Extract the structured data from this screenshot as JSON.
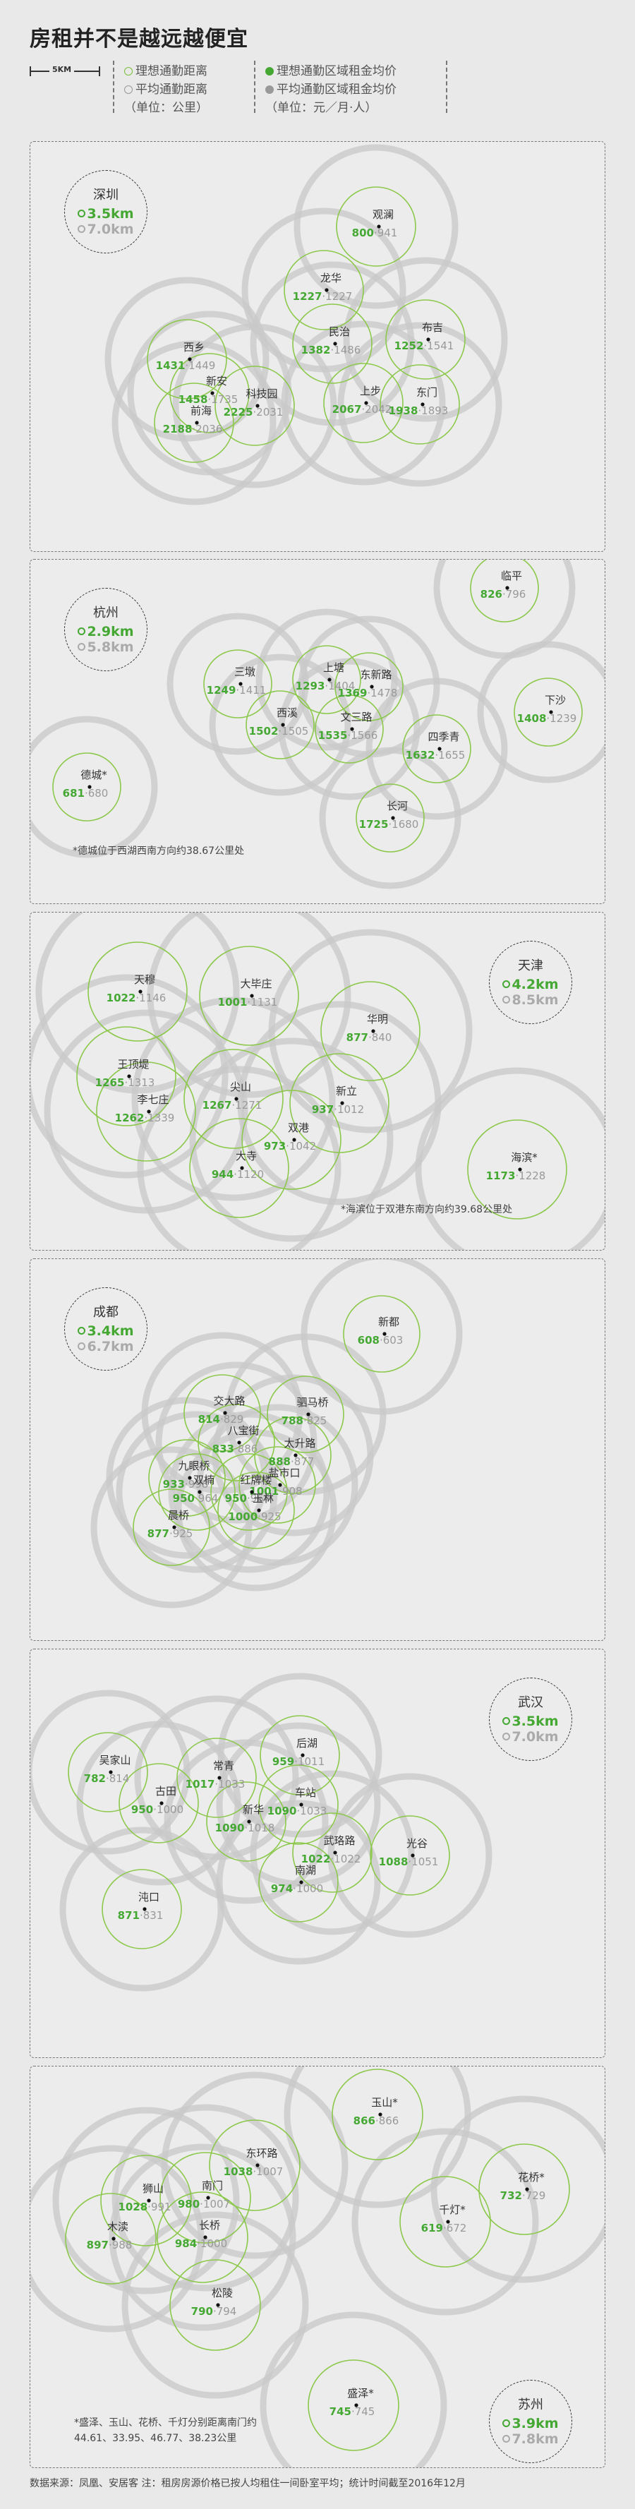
{
  "title": "房租并不是越远越便宜",
  "legend": {
    "scale_label": "5KM",
    "ideal_distance": "理想通勤距离",
    "avg_distance": "平均通勤距离",
    "distance_unit": "（单位：公里）",
    "ideal_rent": "理想通勤区域租金均价",
    "avg_rent": "平均通勤区域租金均价",
    "rent_unit": "（单位：元／月·人）"
  },
  "colors": {
    "green": "#44a833",
    "light_green": "#8cc84b",
    "gray": "#999999",
    "ring_gray": "#c8c8c8"
  },
  "chart_data": [
    {
      "type": "scatter",
      "city": "深圳",
      "ideal_km": "3.5km",
      "avg_km": "7.0km",
      "districts": [
        {
          "name": "观澜",
          "ideal_rent": 800,
          "avg_rent": 941
        },
        {
          "name": "龙华",
          "ideal_rent": 1227,
          "avg_rent": 1227
        },
        {
          "name": "民治",
          "ideal_rent": 1382,
          "avg_rent": 1486
        },
        {
          "name": "布吉",
          "ideal_rent": 1252,
          "avg_rent": 1541
        },
        {
          "name": "西乡",
          "ideal_rent": 1431,
          "avg_rent": 1449
        },
        {
          "name": "新安",
          "ideal_rent": 1458,
          "avg_rent": 1735
        },
        {
          "name": "前海",
          "ideal_rent": 2188,
          "avg_rent": 2036
        },
        {
          "name": "科技园",
          "ideal_rent": 2225,
          "avg_rent": 2031
        },
        {
          "name": "上步",
          "ideal_rent": 2067,
          "avg_rent": 2042
        },
        {
          "name": "东门",
          "ideal_rent": 1938,
          "avg_rent": 1893
        }
      ]
    },
    {
      "type": "scatter",
      "city": "杭州",
      "ideal_km": "2.9km",
      "avg_km": "5.8km",
      "note": "*德城位于西湖西南方向约38.67公里处",
      "districts": [
        {
          "name": "临平",
          "ideal_rent": 826,
          "avg_rent": 796
        },
        {
          "name": "三墩",
          "ideal_rent": 1249,
          "avg_rent": 1411
        },
        {
          "name": "上塘",
          "ideal_rent": 1293,
          "avg_rent": 1404
        },
        {
          "name": "东新路",
          "ideal_rent": 1369,
          "avg_rent": 1478
        },
        {
          "name": "下沙",
          "ideal_rent": 1408,
          "avg_rent": 1239
        },
        {
          "name": "西溪",
          "ideal_rent": 1502,
          "avg_rent": 1505
        },
        {
          "name": "文三路",
          "ideal_rent": 1535,
          "avg_rent": 1566
        },
        {
          "name": "四季青",
          "ideal_rent": 1632,
          "avg_rent": 1655
        },
        {
          "name": "德城*",
          "ideal_rent": 681,
          "avg_rent": 680
        },
        {
          "name": "长河",
          "ideal_rent": 1725,
          "avg_rent": 1680
        }
      ]
    },
    {
      "type": "scatter",
      "city": "天津",
      "ideal_km": "4.2km",
      "avg_km": "8.5km",
      "note": "*海滨位于双港东南方向约39.68公里处",
      "districts": [
        {
          "name": "天穆",
          "ideal_rent": 1022,
          "avg_rent": 1146
        },
        {
          "name": "大毕庄",
          "ideal_rent": 1001,
          "avg_rent": 1131
        },
        {
          "name": "华明",
          "ideal_rent": 877,
          "avg_rent": 840
        },
        {
          "name": "王顶堤",
          "ideal_rent": 1265,
          "avg_rent": 1313
        },
        {
          "name": "尖山",
          "ideal_rent": 1267,
          "avg_rent": 1271
        },
        {
          "name": "李七庄",
          "ideal_rent": 1262,
          "avg_rent": 1339
        },
        {
          "name": "新立",
          "ideal_rent": 937,
          "avg_rent": 1012
        },
        {
          "name": "双港",
          "ideal_rent": 973,
          "avg_rent": 1042
        },
        {
          "name": "大寺",
          "ideal_rent": 944,
          "avg_rent": 1120
        },
        {
          "name": "海滨*",
          "ideal_rent": 1173,
          "avg_rent": 1228
        }
      ]
    },
    {
      "type": "scatter",
      "city": "成都",
      "ideal_km": "3.4km",
      "avg_km": "6.7km",
      "districts": [
        {
          "name": "新都",
          "ideal_rent": 608,
          "avg_rent": 603
        },
        {
          "name": "交大路",
          "ideal_rent": 814,
          "avg_rent": 829
        },
        {
          "name": "驷马桥",
          "ideal_rent": 788,
          "avg_rent": 825
        },
        {
          "name": "八宝街",
          "ideal_rent": 833,
          "avg_rent": 886
        },
        {
          "name": "太升路",
          "ideal_rent": 888,
          "avg_rent": 877
        },
        {
          "name": "九眼桥",
          "ideal_rent": 933,
          "avg_rent": 998
        },
        {
          "name": "盐市口",
          "ideal_rent": 1001,
          "avg_rent": 908
        },
        {
          "name": "双楠",
          "ideal_rent": 950,
          "avg_rent": 964
        },
        {
          "name": "红牌楼",
          "ideal_rent": 950,
          "avg_rent": 964
        },
        {
          "name": "玉林",
          "ideal_rent": 1000,
          "avg_rent": 925
        },
        {
          "name": "晨桥",
          "ideal_rent": 877,
          "avg_rent": 925
        }
      ]
    },
    {
      "type": "scatter",
      "city": "武汉",
      "ideal_km": "3.5km",
      "avg_km": "7.0km",
      "districts": [
        {
          "name": "后湖",
          "ideal_rent": 959,
          "avg_rent": 1011
        },
        {
          "name": "吴家山",
          "ideal_rent": 782,
          "avg_rent": 814
        },
        {
          "name": "常青",
          "ideal_rent": 1017,
          "avg_rent": 1033
        },
        {
          "name": "古田",
          "ideal_rent": 950,
          "avg_rent": 1000
        },
        {
          "name": "车站",
          "ideal_rent": 1090,
          "avg_rent": 1033
        },
        {
          "name": "新华",
          "ideal_rent": 1090,
          "avg_rent": 1018
        },
        {
          "name": "武珞路",
          "ideal_rent": 1022,
          "avg_rent": 1022
        },
        {
          "name": "光谷",
          "ideal_rent": 1088,
          "avg_rent": 1051
        },
        {
          "name": "沌口",
          "ideal_rent": 871,
          "avg_rent": 831
        },
        {
          "name": "南湖",
          "ideal_rent": 974,
          "avg_rent": 1000
        }
      ]
    },
    {
      "type": "scatter",
      "city": "苏州",
      "ideal_km": "3.9km",
      "avg_km": "7.8km",
      "note_line1": "*盛泽、玉山、花桥、千灯分别距离南门约",
      "note_line2": "44.61、33.95、46.77、38.23公里",
      "districts": [
        {
          "name": "玉山*",
          "ideal_rent": 866,
          "avg_rent": 866
        },
        {
          "name": "东环路",
          "ideal_rent": 1038,
          "avg_rent": 1007
        },
        {
          "name": "南门",
          "ideal_rent": 980,
          "avg_rent": 1007
        },
        {
          "name": "狮山",
          "ideal_rent": 1028,
          "avg_rent": 991
        },
        {
          "name": "木渎",
          "ideal_rent": 897,
          "avg_rent": 988
        },
        {
          "name": "长桥",
          "ideal_rent": 984,
          "avg_rent": 1000
        },
        {
          "name": "花桥*",
          "ideal_rent": 732,
          "avg_rent": 729
        },
        {
          "name": "千灯*",
          "ideal_rent": 619,
          "avg_rent": 672
        },
        {
          "name": "松陵",
          "ideal_rent": 790,
          "avg_rent": 794
        },
        {
          "name": "盛泽*",
          "ideal_rent": 745,
          "avg_rent": 745
        }
      ]
    }
  ],
  "footer": "数据来源：凤凰、安居客  注：租房房源价格已按人均租住一间卧室平均；统计时间截至2016年12月"
}
